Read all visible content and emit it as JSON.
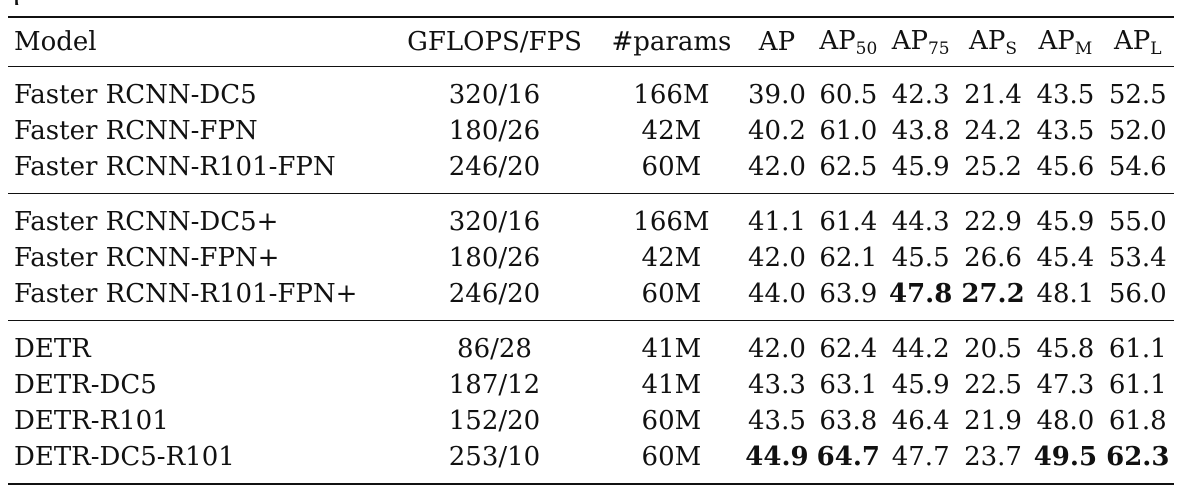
{
  "table": {
    "headers": {
      "model": "Model",
      "gflops_fps": "GFLOPS/FPS",
      "params": "#params",
      "ap": "AP",
      "ap50": {
        "base": "AP",
        "sub": "50"
      },
      "ap75": {
        "base": "AP",
        "sub": "75"
      },
      "aps": {
        "base": "AP",
        "sub": "S"
      },
      "apm": {
        "base": "AP",
        "sub": "M"
      },
      "apl": {
        "base": "AP",
        "sub": "L"
      }
    },
    "groups": [
      {
        "rows": [
          {
            "model": "Faster RCNN-DC5",
            "gflops_fps": "320/16",
            "params": "166M",
            "ap": "39.0",
            "ap50": "60.5",
            "ap75": "42.3",
            "aps": "21.4",
            "apm": "43.5",
            "apl": "52.5",
            "bold": []
          },
          {
            "model": "Faster RCNN-FPN",
            "gflops_fps": "180/26",
            "params": "42M",
            "ap": "40.2",
            "ap50": "61.0",
            "ap75": "43.8",
            "aps": "24.2",
            "apm": "43.5",
            "apl": "52.0",
            "bold": []
          },
          {
            "model": "Faster RCNN-R101-FPN",
            "gflops_fps": "246/20",
            "params": "60M",
            "ap": "42.0",
            "ap50": "62.5",
            "ap75": "45.9",
            "aps": "25.2",
            "apm": "45.6",
            "apl": "54.6",
            "bold": []
          }
        ]
      },
      {
        "rows": [
          {
            "model": "Faster RCNN-DC5+",
            "gflops_fps": "320/16",
            "params": "166M",
            "ap": "41.1",
            "ap50": "61.4",
            "ap75": "44.3",
            "aps": "22.9",
            "apm": "45.9",
            "apl": "55.0",
            "bold": []
          },
          {
            "model": "Faster RCNN-FPN+",
            "gflops_fps": "180/26",
            "params": "42M",
            "ap": "42.0",
            "ap50": "62.1",
            "ap75": "45.5",
            "aps": "26.6",
            "apm": "45.4",
            "apl": "53.4",
            "bold": []
          },
          {
            "model": "Faster RCNN-R101-FPN+",
            "gflops_fps": "246/20",
            "params": "60M",
            "ap": "44.0",
            "ap50": "63.9",
            "ap75": "47.8",
            "aps": "27.2",
            "apm": "48.1",
            "apl": "56.0",
            "bold": [
              "ap75",
              "aps"
            ]
          }
        ]
      },
      {
        "rows": [
          {
            "model": "DETR",
            "gflops_fps": "86/28",
            "params": "41M",
            "ap": "42.0",
            "ap50": "62.4",
            "ap75": "44.2",
            "aps": "20.5",
            "apm": "45.8",
            "apl": "61.1",
            "bold": []
          },
          {
            "model": "DETR-DC5",
            "gflops_fps": "187/12",
            "params": "41M",
            "ap": "43.3",
            "ap50": "63.1",
            "ap75": "45.9",
            "aps": "22.5",
            "apm": "47.3",
            "apl": "61.1",
            "bold": []
          },
          {
            "model": "DETR-R101",
            "gflops_fps": "152/20",
            "params": "60M",
            "ap": "43.5",
            "ap50": "63.8",
            "ap75": "46.4",
            "aps": "21.9",
            "apm": "48.0",
            "apl": "61.8",
            "bold": []
          },
          {
            "model": "DETR-DC5-R101",
            "gflops_fps": "253/10",
            "params": "60M",
            "ap": "44.9",
            "ap50": "64.7",
            "ap75": "47.7",
            "aps": "23.7",
            "apm": "49.5",
            "apl": "62.3",
            "bold": [
              "ap",
              "ap50",
              "apm",
              "apl"
            ]
          }
        ]
      }
    ]
  }
}
